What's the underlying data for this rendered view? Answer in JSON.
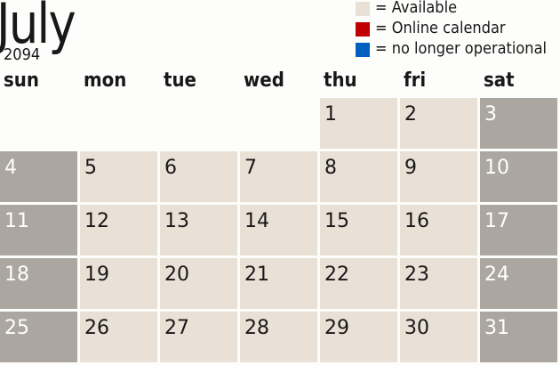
{
  "month": "July",
  "year": "2094",
  "legend": [
    {
      "label": "= Available",
      "color": "#e9e1d6"
    },
    {
      "label": "= Online calendar",
      "color": "#c00000"
    },
    {
      "label": "= no longer operational",
      "color": "#005fbf"
    }
  ],
  "weekdays": [
    "sun",
    "mon",
    "tue",
    "wed",
    "thu",
    "fri",
    "sat"
  ],
  "colors": {
    "weekday_cell": "#e9e1d6",
    "weekend_cell": "#aba69f"
  },
  "first_day_column": 4,
  "days": [
    "1",
    "2",
    "3",
    "4",
    "5",
    "6",
    "7",
    "8",
    "9",
    "10",
    "11",
    "12",
    "13",
    "14",
    "15",
    "16",
    "17",
    "18",
    "19",
    "20",
    "21",
    "22",
    "23",
    "24",
    "25",
    "26",
    "27",
    "28",
    "29",
    "30",
    "31"
  ]
}
